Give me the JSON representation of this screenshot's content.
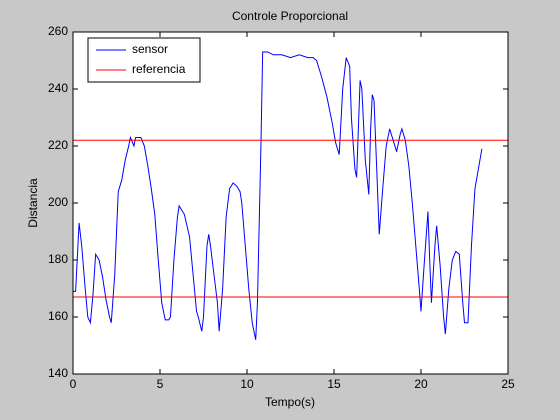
{
  "chart_data": {
    "type": "line",
    "title": "Controle Proporcional",
    "x_label": "Tempo(s)",
    "y_label": "Distancia",
    "xlim": [
      0,
      25
    ],
    "xticks": [
      0,
      5,
      10,
      15,
      20,
      25
    ],
    "ylim": [
      140,
      260
    ],
    "yticks": [
      140,
      160,
      180,
      200,
      220,
      240,
      260
    ],
    "grid": false,
    "legend": "upper-left",
    "series": [
      {
        "name": "sensor",
        "color": "#0000ff",
        "x": [
          0,
          0.15,
          0.35,
          0.5,
          0.7,
          0.85,
          1.0,
          1.15,
          1.3,
          1.5,
          1.7,
          1.9,
          2.1,
          2.2,
          2.4,
          2.6,
          2.8,
          3.0,
          3.2,
          3.3,
          3.5,
          3.6,
          3.9,
          4.1,
          4.3,
          4.5,
          4.7,
          4.9,
          5.1,
          5.3,
          5.5,
          5.6,
          5.8,
          6.0,
          6.1,
          6.4,
          6.7,
          6.9,
          7.1,
          7.2,
          7.4,
          7.5,
          7.7,
          7.8,
          7.9,
          8.1,
          8.3,
          8.4,
          8.6,
          8.8,
          9.0,
          9.2,
          9.4,
          9.6,
          9.7,
          9.9,
          10.1,
          10.3,
          10.4,
          10.5,
          10.6,
          10.8,
          10.9,
          11.2,
          11.5,
          12.0,
          12.5,
          13.0,
          13.5,
          13.8,
          14.0,
          14.3,
          14.6,
          14.9,
          15.1,
          15.3,
          15.5,
          15.7,
          15.9,
          16.0,
          16.2,
          16.3,
          16.5,
          16.6,
          16.8,
          17.0,
          17.1,
          17.2,
          17.3,
          17.5,
          17.6,
          17.8,
          18.0,
          18.2,
          18.4,
          18.6,
          18.8,
          18.9,
          19.1,
          19.3,
          19.5,
          19.7,
          19.9,
          20.0,
          20.2,
          20.4,
          20.5,
          20.6,
          20.8,
          20.9,
          21.1,
          21.3,
          21.4,
          21.6,
          21.8,
          22.0,
          22.2,
          22.4,
          22.5,
          22.7,
          22.9,
          23.1,
          23.3,
          23.5
        ],
        "values": [
          169,
          169,
          193,
          185,
          170,
          160,
          158,
          168,
          182,
          180,
          174,
          166,
          160,
          158,
          175,
          204,
          208,
          215,
          220,
          223,
          220,
          223,
          223,
          220,
          213,
          205,
          196,
          180,
          165,
          159,
          159,
          160,
          180,
          195,
          199,
          196,
          188,
          175,
          162,
          160,
          155,
          160,
          185,
          189,
          185,
          175,
          165,
          155,
          170,
          195,
          205,
          207,
          206,
          204,
          200,
          185,
          170,
          158,
          155,
          152,
          165,
          220,
          253,
          253,
          252,
          252,
          251,
          252,
          251,
          251,
          250,
          244,
          237,
          228,
          221,
          217,
          240,
          251,
          248,
          230,
          212,
          209,
          243,
          240,
          215,
          203,
          225,
          238,
          236,
          205,
          189,
          205,
          220,
          226,
          222,
          218,
          224,
          226,
          222,
          213,
          200,
          185,
          170,
          162,
          180,
          197,
          180,
          165,
          185,
          192,
          178,
          160,
          154,
          170,
          180,
          183,
          182,
          165,
          158,
          158,
          185,
          205,
          212,
          219
        ]
      },
      {
        "name": "referencia",
        "color": "#ff0000",
        "x": [
          0,
          25,
          null,
          0,
          25
        ],
        "values": [
          222,
          222,
          null,
          167,
          167
        ]
      }
    ]
  }
}
